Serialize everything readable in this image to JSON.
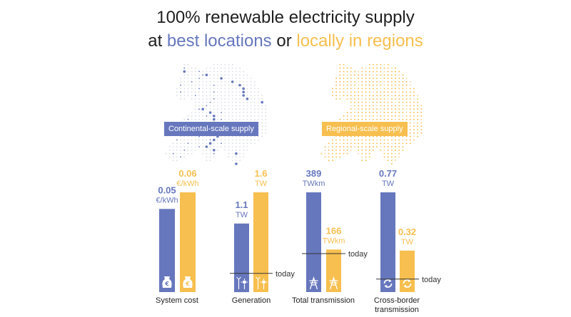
{
  "title": {
    "line1": "100% renewable electricity supply",
    "line2_prefix": "at ",
    "line2_blue": "best locations",
    "line2_mid": " or ",
    "line2_yellow": "locally in regions"
  },
  "badges": {
    "continental": "Continental-scale supply",
    "regional": "Regional-scale supply"
  },
  "colors": {
    "continental": "#6677bd",
    "regional": "#f7bf4f",
    "map_grey": "#d9dbe3"
  },
  "today_label": "today",
  "chart_data": {
    "type": "bar",
    "series": [
      {
        "name": "Continental-scale supply",
        "color": "#6677bd"
      },
      {
        "name": "Regional-scale supply",
        "color": "#f7bf4f"
      }
    ],
    "groups": [
      {
        "category": "System cost",
        "category_line2": "",
        "icon": "money-bag-euro-icon",
        "continental": {
          "value": 0.05,
          "value_label": "0.05",
          "unit": "€/kWh"
        },
        "regional": {
          "value": 0.06,
          "value_label": "0.06",
          "unit": "€/kWh"
        },
        "today": null
      },
      {
        "category": "Generation",
        "category_line2": "",
        "icon": "wind-solar-icon",
        "continental": {
          "value": 1.1,
          "value_label": "1.1",
          "unit": "TW"
        },
        "regional": {
          "value": 1.6,
          "value_label": "1.6",
          "unit": "TW"
        },
        "today": 0.3
      },
      {
        "category": "Total transmission",
        "category_line2": "",
        "icon": "transmission-tower-icon",
        "continental": {
          "value": 389,
          "value_label": "389",
          "unit": "TWkm"
        },
        "regional": {
          "value": 166,
          "value_label": "166",
          "unit": "TWkm"
        },
        "today": 150
      },
      {
        "category": "Cross-border",
        "category_line2": "transmission",
        "icon": "cycle-arrows-icon",
        "continental": {
          "value": 0.77,
          "value_label": "0.77",
          "unit": "TW"
        },
        "regional": {
          "value": 0.32,
          "value_label": "0.32",
          "unit": "TW"
        },
        "today": 0.1
      }
    ]
  }
}
